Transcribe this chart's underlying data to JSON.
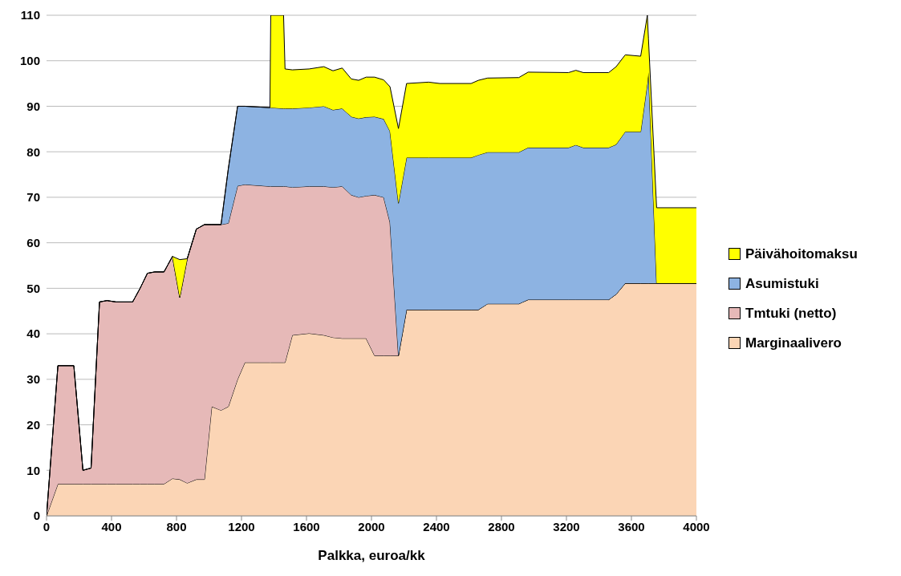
{
  "chart_data": {
    "type": "area",
    "stacked": true,
    "xlabel": "Palkka, euroa/kk",
    "x": [
      0,
      70,
      168,
      224,
      274,
      326,
      372,
      428,
      530,
      576,
      621,
      666,
      723,
      775,
      820,
      866,
      922,
      972,
      1017,
      1074,
      1119,
      1176,
      1221,
      1375,
      1380,
      1459,
      1468,
      1513,
      1616,
      1707,
      1763,
      1820,
      1876,
      1921,
      1967,
      2019,
      2075,
      2114,
      2166,
      2216,
      2352,
      2420,
      2613,
      2658,
      2715,
      2907,
      2964,
      3213,
      3258,
      3304,
      3460,
      3506,
      3562,
      3657,
      3698,
      3705,
      3755,
      4000
    ],
    "series": [
      {
        "name": "Marginaalivero",
        "color": "#fbd5b5",
        "values": [
          0,
          7,
          7,
          7,
          7,
          7,
          7,
          7,
          7,
          7,
          7,
          7,
          7,
          8.2,
          8,
          7.2,
          8,
          8,
          24,
          23.2,
          24,
          30,
          33.7,
          33.7,
          33.7,
          33.7,
          33.7,
          39.7,
          40.1,
          39.7,
          39.2,
          39,
          39,
          39,
          39,
          35.2,
          35.2,
          35.2,
          35.2,
          45.3,
          45.3,
          45.3,
          45.3,
          45.3,
          46.6,
          46.6,
          47.5,
          47.5,
          47.5,
          47.5,
          47.5,
          48.7,
          51.1,
          51.1,
          51.1,
          51.1,
          51.1,
          51.1
        ]
      },
      {
        "name": "Tmtuki (netto)",
        "color": "#e6b9b8",
        "values": [
          0,
          26,
          26,
          3,
          3.5,
          40,
          40.3,
          40,
          40,
          43,
          46.3,
          46.6,
          46.6,
          48.8,
          40,
          49.3,
          55,
          56,
          40,
          40.8,
          40.3,
          42.5,
          39.1,
          38.7,
          38.7,
          38.7,
          38.7,
          32.5,
          32.3,
          32.7,
          33,
          33.4,
          31.5,
          31,
          31.3,
          35.3,
          34.8,
          29.3,
          0,
          0,
          0,
          0,
          0,
          0,
          0,
          0,
          0,
          0,
          0,
          0,
          0,
          0,
          0,
          0,
          0,
          0,
          0,
          0
        ]
      },
      {
        "name": "Asumistuki",
        "color": "#8db3e2",
        "values": [
          0,
          0,
          0,
          0,
          0,
          0,
          0,
          0,
          0,
          0,
          0,
          0,
          0,
          0,
          0,
          0,
          0,
          0,
          0,
          0,
          12,
          17.5,
          17.2,
          17.3,
          17.3,
          17.1,
          17.1,
          17.3,
          17.3,
          17.6,
          17,
          17.1,
          17.2,
          17.3,
          17.3,
          17.2,
          17.2,
          20,
          33.5,
          33.4,
          33.4,
          33.4,
          33.4,
          34,
          33.3,
          33.3,
          33.4,
          33.4,
          34,
          33.4,
          33.4,
          32.9,
          33.3,
          33.3,
          43.9,
          46.4,
          0,
          0
        ]
      },
      {
        "name": "Päivähoitomaksu",
        "color": "#ffff00",
        "values": [
          0,
          0,
          0,
          0,
          0,
          0,
          0,
          0,
          0,
          0,
          0,
          0,
          0,
          0,
          8.3,
          0,
          0,
          0,
          0,
          0,
          0,
          0,
          0,
          0,
          20.3,
          20.5,
          8.7,
          8.5,
          8.5,
          8.7,
          8.6,
          8.9,
          8.3,
          8.4,
          8.8,
          8.7,
          8.6,
          9.8,
          16.4,
          16.3,
          16.6,
          16.3,
          16.3,
          16.4,
          16.3,
          16.4,
          16.6,
          16.5,
          16.4,
          16.5,
          16.5,
          17.1,
          16.9,
          16.6,
          15,
          7.3,
          16.6,
          16.6
        ]
      }
    ],
    "xlim": [
      0,
      4000
    ],
    "xticks": [
      0,
      400,
      800,
      1200,
      1600,
      2000,
      2400,
      2800,
      3200,
      3600,
      4000
    ],
    "ylim": [
      0,
      110
    ],
    "yticks": [
      0,
      10,
      20,
      30,
      40,
      50,
      60,
      70,
      80,
      90,
      100,
      110
    ],
    "grid": "y",
    "legend": "right"
  }
}
